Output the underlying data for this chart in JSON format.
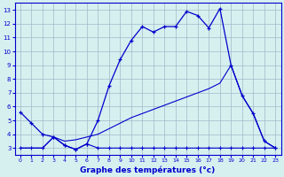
{
  "xlabel": "Graphe des températures (°c)",
  "bg_color": "#d6f0f0",
  "grid_color": "#a0b8c8",
  "line_color": "#0000cc",
  "xlim": [
    -0.5,
    23.5
  ],
  "ylim": [
    2.5,
    13.5
  ],
  "xticks": [
    0,
    1,
    2,
    3,
    4,
    5,
    6,
    7,
    8,
    9,
    10,
    11,
    12,
    13,
    14,
    15,
    16,
    17,
    18,
    19,
    20,
    21,
    22,
    23
  ],
  "yticks": [
    3,
    4,
    5,
    6,
    7,
    8,
    9,
    10,
    11,
    12,
    13
  ],
  "hours": [
    0,
    1,
    2,
    3,
    4,
    5,
    6,
    7,
    8,
    9,
    10,
    11,
    12,
    13,
    14,
    15,
    16,
    17,
    18,
    19,
    20,
    21,
    22,
    23
  ],
  "temp_main": [
    5.6,
    4.8,
    4.0,
    3.8,
    3.2,
    2.9,
    3.3,
    5.0,
    7.5,
    9.4,
    10.8,
    11.8,
    11.4,
    11.8,
    11.8,
    12.9,
    12.6,
    11.7,
    13.1,
    9.0,
    6.8,
    5.5,
    3.5,
    3.0
  ],
  "temp_min": [
    3.0,
    3.0,
    3.0,
    3.8,
    3.2,
    2.9,
    3.3,
    3.0,
    3.0,
    3.0,
    3.0,
    3.0,
    3.0,
    3.0,
    3.0,
    3.0,
    3.0,
    3.0,
    3.0,
    3.0,
    3.0,
    3.0,
    3.0,
    3.0
  ],
  "temp_trend": [
    3.0,
    3.0,
    3.0,
    3.8,
    3.5,
    3.6,
    3.8,
    4.0,
    4.4,
    4.8,
    5.2,
    5.5,
    5.8,
    6.1,
    6.4,
    6.7,
    7.0,
    7.3,
    7.7,
    9.0,
    6.8,
    5.5,
    3.5,
    3.0
  ]
}
